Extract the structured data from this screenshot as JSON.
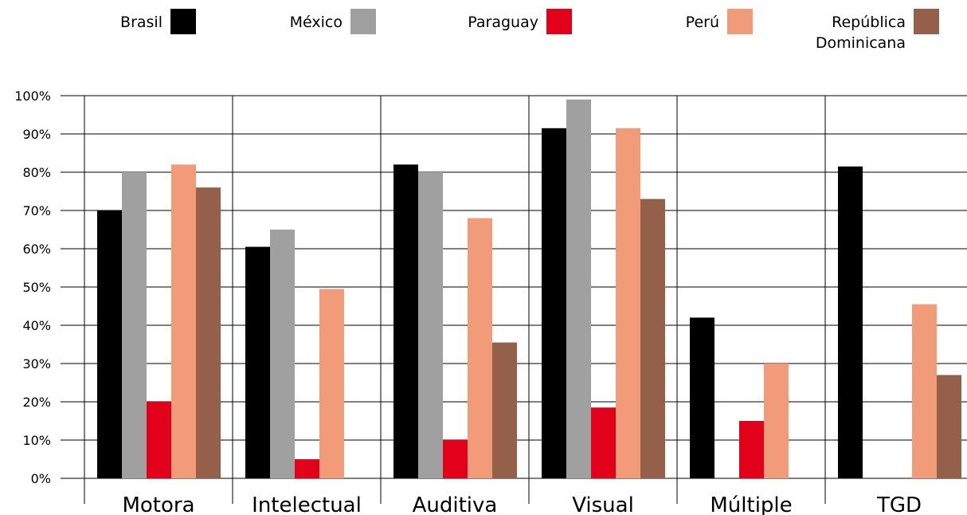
{
  "chart_data": {
    "type": "bar",
    "categories": [
      "Motora",
      "Intelectual",
      "Auditiva",
      "Visual",
      "Múltiple",
      "TGD"
    ],
    "ylim": [
      0,
      100
    ],
    "y_ticks": [
      "0%",
      "10%",
      "20%",
      "30%",
      "40%",
      "50%",
      "60%",
      "70%",
      "80%",
      "90%",
      "100%"
    ],
    "grid": "horizontal",
    "legend_position": "top",
    "series": [
      {
        "name": "Brasil",
        "color": "#000000",
        "values": [
          70,
          60.5,
          82,
          91.5,
          42,
          81.5
        ]
      },
      {
        "name": "México",
        "color": "#a0a0a0",
        "values": [
          80,
          65,
          80,
          99,
          null,
          null
        ]
      },
      {
        "name": "Paraguay",
        "color": "#e2001a",
        "values": [
          20,
          5,
          10,
          18.5,
          15,
          null
        ]
      },
      {
        "name": "Perú",
        "color": "#f29b78",
        "values": [
          82,
          49.5,
          68,
          91.5,
          30,
          45.5
        ]
      },
      {
        "name": "República Dominicana",
        "name_lines": [
          "República",
          "Dominicana"
        ],
        "color": "#94604a",
        "values": [
          76,
          null,
          35.5,
          73,
          null,
          27
        ]
      }
    ]
  }
}
